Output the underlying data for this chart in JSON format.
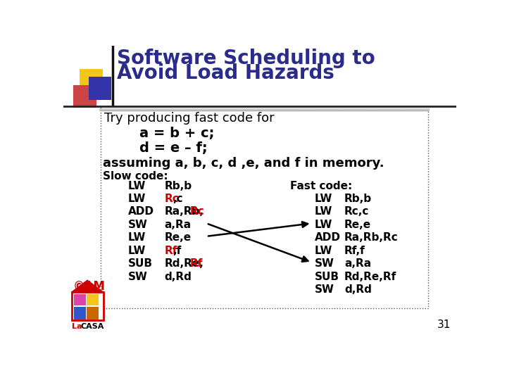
{
  "title_line1": "Software Scheduling to",
  "title_line2": "Avoid Load Hazards",
  "title_color": "#2b2b8c",
  "bg_color": "#ffffff",
  "subtitle": "Try producing fast code for",
  "code_line1": "a = b + c;",
  "code_line2": "d = e – f;",
  "assumption": "assuming a, b, c, d ,e, and f in memory.",
  "slow_label": "Slow code:",
  "fast_label": "Fast code:",
  "slow_col1": [
    "LW",
    "LW",
    "ADD",
    "SW",
    "LW",
    "LW",
    "SUB",
    "SW"
  ],
  "slow_col2_parts": [
    [
      [
        "Rb,b",
        "black"
      ]
    ],
    [
      [
        "Rc",
        "#cc0000"
      ],
      [
        ",c",
        "black"
      ]
    ],
    [
      [
        "Ra,Rb,",
        "black"
      ],
      [
        "Rc",
        "#cc0000"
      ]
    ],
    [
      [
        "a,Ra",
        "black"
      ]
    ],
    [
      [
        "Re,e",
        "black"
      ]
    ],
    [
      [
        "Rf",
        "#cc0000"
      ],
      [
        ",f",
        "black"
      ]
    ],
    [
      [
        "Rd,Re,",
        "black"
      ],
      [
        "Rf",
        "#cc0000"
      ]
    ],
    [
      [
        "d,Rd",
        "black"
      ]
    ]
  ],
  "fast_col1": [
    "LW",
    "LW",
    "LW",
    "ADD",
    "LW",
    "SW",
    "SUB",
    "SW"
  ],
  "fast_col2": [
    "Rb,b",
    "Rc,c",
    "Re,e",
    "Ra,Rb,Rc",
    "Rf,f",
    "a,Ra",
    "Rd,Re,Rf",
    "d,Rd"
  ],
  "sq_colors": [
    "#f5c518",
    "#cc0000",
    "#3333aa"
  ],
  "page_number": "31",
  "arrow_color": "black"
}
